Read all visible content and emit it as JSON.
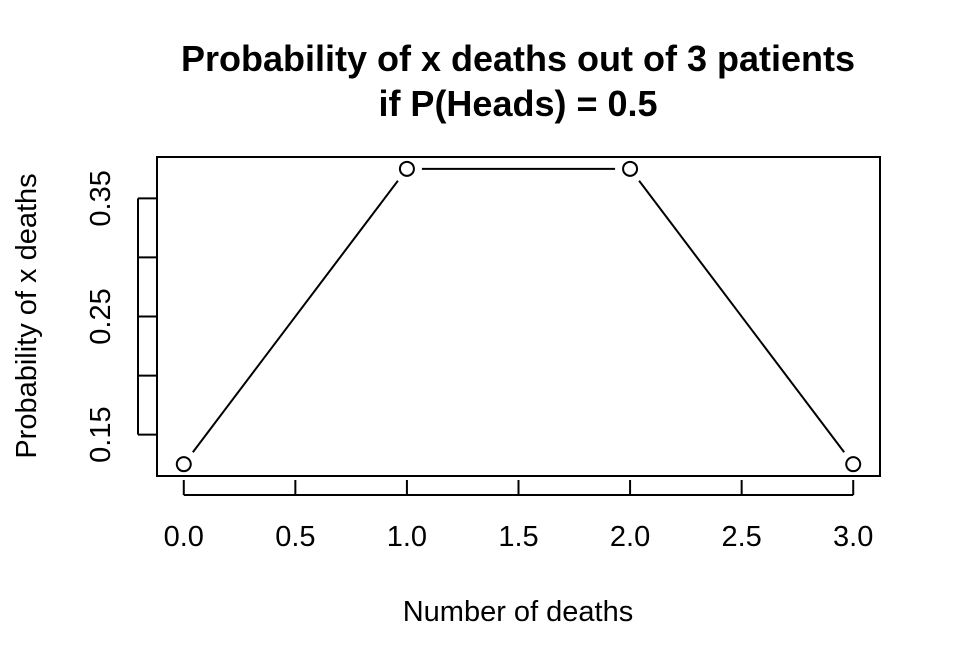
{
  "chart_data": {
    "type": "line",
    "title_lines": [
      "Probability of x deaths out of 3 patients",
      "if P(Heads) = 0.5"
    ],
    "xlabel": "Number of deaths",
    "ylabel": "Probability of x deaths",
    "x": [
      0,
      1,
      2,
      3
    ],
    "y": [
      0.125,
      0.375,
      0.375,
      0.125
    ],
    "xlim": [
      -0.12,
      3.12
    ],
    "ylim": [
      0.115,
      0.385
    ],
    "xticks": [
      0,
      0.5,
      1,
      1.5,
      2,
      2.5,
      3
    ],
    "xtick_labels": [
      "0.0",
      "0.5",
      "1.0",
      "1.5",
      "2.0",
      "2.5",
      "3.0"
    ],
    "yticks": [
      0.15,
      0.2,
      0.25,
      0.3,
      0.35
    ],
    "ytick_labels": [
      "0.15",
      "",
      "0.25",
      "",
      "0.35"
    ],
    "marker": "open-circle",
    "line_style": "lines-with-gaps-at-points",
    "grid": false,
    "legend": "none",
    "colors": {
      "line": "#000000",
      "marker_fill": "#ffffff",
      "background": "#ffffff"
    }
  }
}
